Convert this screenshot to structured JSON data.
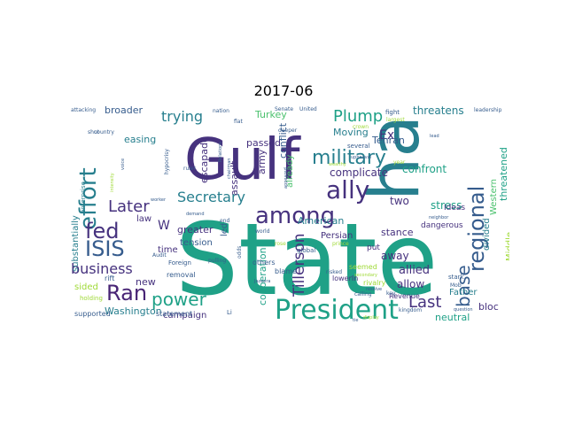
{
  "figure": {
    "title": "2017-06"
  },
  "palette": {
    "deep_purple": "#46327e",
    "purple": "#482475",
    "blue": "#365c8d",
    "teal_blue": "#277f8e",
    "teal": "#1fa187",
    "green": "#4ac16d",
    "lime": "#a0da39",
    "yellow": "#fde725",
    "background": "#ffffff"
  },
  "words": [
    {
      "text": "State",
      "color": "#1fa187"
    },
    {
      "text": "Gulf",
      "color": "#46327e"
    },
    {
      "text": "ha",
      "color": "#277f8e"
    },
    {
      "text": "President",
      "color": "#1fa187"
    },
    {
      "text": "among",
      "color": "#46327e"
    },
    {
      "text": "ally",
      "color": "#46327e"
    },
    {
      "text": "effort",
      "color": "#277f8e"
    },
    {
      "text": "military",
      "color": "#277f8e"
    },
    {
      "text": "regional",
      "color": "#365c8d"
    },
    {
      "text": "fed",
      "color": "#46327e"
    },
    {
      "text": "ISIS",
      "color": "#365c8d"
    },
    {
      "text": "Ran",
      "color": "#482475"
    },
    {
      "text": "Later",
      "color": "#46327e"
    },
    {
      "text": "power",
      "color": "#1fa187"
    },
    {
      "text": "business",
      "color": "#46327e"
    },
    {
      "text": "base",
      "color": "#365c8d"
    },
    {
      "text": "Plump",
      "color": "#1fa187"
    },
    {
      "text": "Last",
      "color": "#46327e"
    },
    {
      "text": "Tillerson",
      "color": "#46327e"
    },
    {
      "text": "Secretary",
      "color": "#277f8e"
    },
    {
      "text": "trying",
      "color": "#277f8e"
    },
    {
      "text": "Ex",
      "color": "#46327e"
    },
    {
      "text": "threatens",
      "color": "#277f8e"
    },
    {
      "text": "confront",
      "color": "#1fa187"
    },
    {
      "text": "complicate",
      "color": "#46327e"
    },
    {
      "text": "allied",
      "color": "#46327e"
    },
    {
      "text": "allow",
      "color": "#46327e"
    },
    {
      "text": "away",
      "color": "#46327e"
    },
    {
      "text": "stance",
      "color": "#46327e"
    },
    {
      "text": "two",
      "color": "#46327e"
    },
    {
      "text": "stress",
      "color": "#1fa187"
    },
    {
      "text": "American",
      "color": "#277f8e"
    },
    {
      "text": "Moving",
      "color": "#277f8e"
    },
    {
      "text": "Tehran",
      "color": "#365c8d"
    },
    {
      "text": "broader",
      "color": "#365c8d"
    },
    {
      "text": "easing",
      "color": "#277f8e"
    },
    {
      "text": "escapade",
      "color": "#46327e"
    },
    {
      "text": "assault",
      "color": "#46327e"
    },
    {
      "text": "passed",
      "color": "#46327e"
    },
    {
      "text": "army",
      "color": "#46327e"
    },
    {
      "text": "conflict",
      "color": "#365c8d"
    },
    {
      "text": "Turkey",
      "color": "#4ac16d"
    },
    {
      "text": "already",
      "color": "#4ac16d"
    },
    {
      "text": "greater",
      "color": "#46327e"
    },
    {
      "text": "tension",
      "color": "#365c8d"
    },
    {
      "text": "campaign",
      "color": "#46327e"
    },
    {
      "text": "cooperation",
      "color": "#1fa187"
    },
    {
      "text": "Washington",
      "color": "#277f8e"
    },
    {
      "text": "neutral",
      "color": "#1fa187"
    },
    {
      "text": "bloc",
      "color": "#46327e"
    },
    {
      "text": "Father",
      "color": "#277f8e"
    },
    {
      "text": "Middle",
      "color": "#a0da39"
    },
    {
      "text": "threatened",
      "color": "#1fa187"
    },
    {
      "text": "Western",
      "color": "#4ac16d"
    },
    {
      "text": "divided",
      "color": "#277f8e"
    },
    {
      "text": "Ideas",
      "color": "#46327e"
    },
    {
      "text": "dangerous",
      "color": "#46327e"
    },
    {
      "text": "sided",
      "color": "#a0da39"
    },
    {
      "text": "new",
      "color": "#46327e"
    },
    {
      "text": "time",
      "color": "#46327e"
    },
    {
      "text": "law",
      "color": "#46327e"
    },
    {
      "text": "led",
      "color": "#365c8d"
    },
    {
      "text": "substantially",
      "color": "#277f8e"
    },
    {
      "text": "Persian",
      "color": "#46327e"
    },
    {
      "text": "put",
      "color": "#46327e"
    },
    {
      "text": "rivalry",
      "color": "#a0da39"
    },
    {
      "text": "Revenue",
      "color": "#46327e"
    },
    {
      "text": "lowerIn",
      "color": "#46327e"
    },
    {
      "text": "seemed",
      "color": "#a0da39"
    },
    {
      "text": "blame",
      "color": "#365c8d"
    },
    {
      "text": "removal",
      "color": "#365c8d"
    },
    {
      "text": "statement",
      "color": "#365c8d"
    },
    {
      "text": "supported",
      "color": "#365c8d"
    },
    {
      "text": "rift",
      "color": "#365c8d"
    },
    {
      "text": "holding",
      "color": "#a0da39"
    },
    {
      "text": "Foreign",
      "color": "#365c8d"
    },
    {
      "text": "Audit",
      "color": "#365c8d"
    },
    {
      "text": "enterprise",
      "color": "#277f8e"
    },
    {
      "text": "others",
      "color": "#365c8d"
    },
    {
      "text": "global",
      "color": "#365c8d"
    },
    {
      "text": "stark",
      "color": "#365c8d"
    },
    {
      "text": "fight",
      "color": "#365c8d"
    },
    {
      "text": "leadership",
      "color": "#365c8d"
    },
    {
      "text": "attacking",
      "color": "#365c8d"
    },
    {
      "text": "nation",
      "color": "#365c8d"
    },
    {
      "text": "Senate",
      "color": "#365c8d"
    },
    {
      "text": "United",
      "color": "#365c8d"
    },
    {
      "text": "largest",
      "color": "#a0da39"
    },
    {
      "text": "shut",
      "color": "#365c8d"
    },
    {
      "text": "country",
      "color": "#365c8d"
    },
    {
      "text": "deeper",
      "color": "#365c8d"
    },
    {
      "text": "several",
      "color": "#365c8d"
    },
    {
      "text": "hypocrisy",
      "color": "#365c8d"
    },
    {
      "text": "pulling",
      "color": "#365c8d"
    },
    {
      "text": "demand",
      "color": "#365c8d"
    },
    {
      "text": "worker",
      "color": "#365c8d"
    },
    {
      "text": "world",
      "color": "#365c8d"
    },
    {
      "text": "Jazeera",
      "color": "#365c8d"
    },
    {
      "text": "prince",
      "color": "#a0da39"
    },
    {
      "text": "risked",
      "color": "#365c8d"
    },
    {
      "text": "odds",
      "color": "#365c8d"
    },
    {
      "text": "Mob",
      "color": "#365c8d"
    },
    {
      "text": "kingdom",
      "color": "#365c8d"
    },
    {
      "text": "question",
      "color": "#365c8d"
    },
    {
      "text": "neighbor",
      "color": "#365c8d"
    },
    {
      "text": "ruler",
      "color": "#365c8d"
    },
    {
      "text": "rose",
      "color": "#a0da39"
    },
    {
      "text": "calling",
      "color": "#365c8d"
    },
    {
      "text": "resolve",
      "color": "#365c8d"
    },
    {
      "text": "upheaval",
      "color": "#365c8d"
    },
    {
      "text": "lead",
      "color": "#365c8d"
    },
    {
      "text": "wealthy",
      "color": "#a0da39"
    },
    {
      "text": "appeared",
      "color": "#365c8d"
    },
    {
      "text": "Relations",
      "color": "#365c8d"
    },
    {
      "text": "crown",
      "color": "#a0da39"
    },
    {
      "text": "flat",
      "color": "#365c8d"
    },
    {
      "text": "key",
      "color": "#365c8d"
    },
    {
      "text": "tie",
      "color": "#365c8d"
    },
    {
      "text": "Li",
      "color": "#365c8d"
    },
    {
      "text": "W",
      "color": "#46327e"
    },
    {
      "text": "voice",
      "color": "#365c8d"
    },
    {
      "text": "end",
      "color": "#365c8d"
    },
    {
      "text": "year",
      "color": "#a0da39"
    },
    {
      "text": "dozen",
      "color": "#a0da39"
    },
    {
      "text": "intensity",
      "color": "#a0da39"
    },
    {
      "text": "secondary",
      "color": "#a0da39"
    },
    {
      "text": "display",
      "color": "#a0da39"
    },
    {
      "text": "chairman",
      "color": "#365c8d"
    }
  ]
}
